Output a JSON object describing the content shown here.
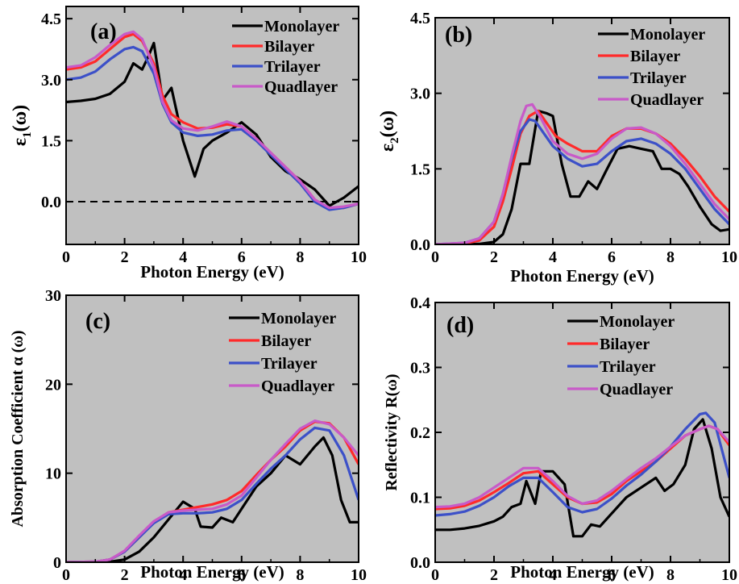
{
  "colors": {
    "Monolayer": "#000000",
    "Bilayer": "#ff2a2a",
    "Trilayer": "#3c50c8",
    "Quadlayer": "#c85ac8",
    "plot_background": "#c0c0c0"
  },
  "chart_data": [
    {
      "type": "line",
      "panel_label": "(a)",
      "xlabel": "Photon Energy (eV)",
      "ylabel_main": "ε",
      "ylabel_sub": "1",
      "ylabel_tail": "(ω)",
      "xlim": [
        0,
        10
      ],
      "ylim": [
        -1.05,
        4.8
      ],
      "xticks": [
        0,
        2,
        4,
        6,
        8,
        10
      ],
      "yticks": [
        0.0,
        1.5,
        3.0,
        4.5
      ],
      "ytick_labels": [
        "0.0",
        "1.5",
        "3.0",
        "4.5"
      ],
      "reference_line": {
        "y": 0,
        "style": "dashed"
      },
      "legend": "top-right",
      "series": [
        {
          "name": "Monolayer",
          "x": [
            0,
            0.5,
            1,
            1.5,
            2,
            2.3,
            2.6,
            2.8,
            3.0,
            3.3,
            3.6,
            4.0,
            4.4,
            4.7,
            5.0,
            5.5,
            6.0,
            6.5,
            7.0,
            7.5,
            8.0,
            8.5,
            9.0,
            9.5,
            10
          ],
          "values": [
            2.45,
            2.48,
            2.53,
            2.65,
            2.95,
            3.4,
            3.25,
            3.55,
            3.9,
            2.5,
            2.8,
            1.5,
            0.62,
            1.3,
            1.5,
            1.7,
            1.95,
            1.65,
            1.1,
            0.75,
            0.55,
            0.3,
            -0.1,
            0.1,
            0.38
          ]
        },
        {
          "name": "Bilayer",
          "x": [
            0,
            0.5,
            1,
            1.5,
            2,
            2.3,
            2.6,
            3.0,
            3.3,
            3.6,
            4.0,
            4.5,
            5.0,
            5.5,
            6.0,
            6.5,
            7.0,
            7.5,
            8.0,
            8.5,
            9.0,
            9.5,
            10
          ],
          "values": [
            3.25,
            3.3,
            3.45,
            3.75,
            4.05,
            4.12,
            3.95,
            3.4,
            2.6,
            2.15,
            1.95,
            1.8,
            1.82,
            1.9,
            1.85,
            1.55,
            1.2,
            0.85,
            0.5,
            0.05,
            -0.18,
            -0.15,
            -0.05
          ]
        },
        {
          "name": "Trilayer",
          "x": [
            0,
            0.5,
            1,
            1.5,
            2,
            2.3,
            2.6,
            3.0,
            3.3,
            3.6,
            4.0,
            4.5,
            5.0,
            5.5,
            6.0,
            6.5,
            7.0,
            7.5,
            8.0,
            8.5,
            9.0,
            9.5,
            10
          ],
          "values": [
            3.0,
            3.05,
            3.2,
            3.5,
            3.75,
            3.8,
            3.7,
            3.15,
            2.4,
            1.95,
            1.7,
            1.62,
            1.65,
            1.75,
            1.78,
            1.5,
            1.15,
            0.8,
            0.45,
            0.0,
            -0.2,
            -0.15,
            -0.05
          ]
        },
        {
          "name": "Quadlayer",
          "x": [
            0,
            0.5,
            1,
            1.5,
            2,
            2.3,
            2.6,
            3.0,
            3.3,
            3.6,
            4.0,
            4.5,
            5.0,
            5.5,
            6.0,
            6.5,
            7.0,
            7.5,
            8.0,
            8.5,
            9.0,
            9.5,
            10
          ],
          "values": [
            3.3,
            3.35,
            3.55,
            3.85,
            4.12,
            4.18,
            4.0,
            3.3,
            2.45,
            2.0,
            1.8,
            1.75,
            1.85,
            1.97,
            1.85,
            1.55,
            1.2,
            0.85,
            0.5,
            0.05,
            -0.15,
            -0.12,
            -0.05
          ]
        }
      ]
    },
    {
      "type": "line",
      "panel_label": "(b)",
      "xlabel": "Photon Energy (eV)",
      "ylabel_main": "ε",
      "ylabel_sub": "2",
      "ylabel_tail": "(ω)",
      "xlim": [
        0,
        10
      ],
      "ylim": [
        0,
        4.5
      ],
      "xticks": [
        0,
        2,
        4,
        6,
        8,
        10
      ],
      "yticks": [
        0.0,
        1.5,
        3.0,
        4.5
      ],
      "ytick_labels": [
        "0.0",
        "1.5",
        "3.0",
        "4.5"
      ],
      "legend": "top-right",
      "series": [
        {
          "name": "Monolayer",
          "x": [
            0,
            1,
            1.5,
            2,
            2.3,
            2.6,
            2.9,
            3.2,
            3.5,
            3.8,
            4.0,
            4.3,
            4.6,
            4.9,
            5.2,
            5.5,
            5.8,
            6.2,
            6.6,
            7.0,
            7.4,
            7.7,
            8.0,
            8.3,
            8.6,
            9.0,
            9.4,
            9.7,
            10
          ],
          "values": [
            0,
            0,
            0.01,
            0.05,
            0.2,
            0.7,
            1.6,
            1.6,
            2.65,
            2.6,
            2.55,
            1.6,
            0.95,
            0.95,
            1.25,
            1.1,
            1.45,
            1.9,
            1.95,
            1.9,
            1.85,
            1.5,
            1.5,
            1.4,
            1.15,
            0.75,
            0.4,
            0.27,
            0.3
          ]
        },
        {
          "name": "Bilayer",
          "x": [
            0,
            1,
            1.5,
            2,
            2.3,
            2.6,
            2.9,
            3.2,
            3.5,
            3.8,
            4.1,
            4.5,
            5.0,
            5.5,
            6.0,
            6.5,
            7.0,
            7.5,
            8.0,
            8.5,
            9.0,
            9.5,
            10
          ],
          "values": [
            0,
            0.02,
            0.08,
            0.35,
            0.85,
            1.5,
            2.2,
            2.55,
            2.65,
            2.4,
            2.15,
            2.0,
            1.85,
            1.85,
            2.15,
            2.3,
            2.3,
            2.2,
            2.0,
            1.7,
            1.35,
            0.95,
            0.65
          ]
        },
        {
          "name": "Trilayer",
          "x": [
            0,
            1,
            1.5,
            2,
            2.3,
            2.6,
            2.9,
            3.2,
            3.4,
            3.7,
            4.0,
            4.5,
            5.0,
            5.5,
            6.0,
            6.5,
            7.0,
            7.5,
            8.0,
            8.5,
            9.0,
            9.5,
            10
          ],
          "values": [
            0,
            0.03,
            0.12,
            0.45,
            1.0,
            1.7,
            2.25,
            2.48,
            2.45,
            2.2,
            1.95,
            1.7,
            1.55,
            1.6,
            1.85,
            2.05,
            2.1,
            2.0,
            1.8,
            1.5,
            1.1,
            0.7,
            0.4
          ]
        },
        {
          "name": "Quadlayer",
          "x": [
            0,
            1,
            1.5,
            2,
            2.3,
            2.6,
            2.9,
            3.1,
            3.3,
            3.6,
            4.0,
            4.5,
            5.0,
            5.5,
            6.0,
            6.5,
            7.0,
            7.5,
            8.0,
            8.5,
            9.0,
            9.5,
            10
          ],
          "values": [
            0,
            0.03,
            0.12,
            0.45,
            1.0,
            1.75,
            2.45,
            2.75,
            2.78,
            2.5,
            2.05,
            1.8,
            1.7,
            1.8,
            2.1,
            2.3,
            2.32,
            2.2,
            1.95,
            1.6,
            1.2,
            0.8,
            0.5
          ]
        }
      ]
    },
    {
      "type": "line",
      "panel_label": "(c)",
      "xlabel": "Photon Energy (eV)",
      "ylabel_main": "Absorption Coefficient α (ω)",
      "xlim": [
        0,
        10
      ],
      "ylim": [
        0,
        30
      ],
      "xticks": [
        0,
        2,
        4,
        6,
        8,
        10
      ],
      "yticks": [
        0,
        10,
        20,
        30
      ],
      "ytick_labels": [
        "0",
        "10",
        "20",
        "30"
      ],
      "legend": "top-right",
      "series": [
        {
          "name": "Monolayer",
          "x": [
            0,
            1,
            1.5,
            2,
            2.5,
            3.0,
            3.5,
            4.0,
            4.4,
            4.6,
            5.0,
            5.3,
            5.7,
            6.0,
            6.5,
            7.0,
            7.5,
            8.0,
            8.5,
            8.8,
            9.1,
            9.4,
            9.7,
            10
          ],
          "values": [
            0,
            0,
            0.05,
            0.3,
            1.2,
            2.8,
            4.8,
            6.8,
            6.0,
            4.0,
            3.9,
            5.0,
            4.5,
            6.0,
            8.5,
            10.0,
            12.0,
            11.0,
            13.0,
            14.0,
            12.0,
            7.0,
            4.5,
            4.5
          ]
        },
        {
          "name": "Bilayer",
          "x": [
            0,
            1,
            1.5,
            2,
            2.5,
            3.0,
            3.5,
            4.0,
            4.5,
            5.0,
            5.5,
            6.0,
            6.5,
            7.0,
            7.5,
            8.0,
            8.5,
            9.0,
            9.5,
            10
          ],
          "values": [
            0,
            0.05,
            0.3,
            1.2,
            2.8,
            4.5,
            5.6,
            5.9,
            6.2,
            6.5,
            7.0,
            8.0,
            9.8,
            11.5,
            13.0,
            14.8,
            15.8,
            15.6,
            14.0,
            11.0
          ]
        },
        {
          "name": "Trilayer",
          "x": [
            0,
            1,
            1.5,
            2,
            2.5,
            3.0,
            3.5,
            4.0,
            4.5,
            5.0,
            5.5,
            6.0,
            6.5,
            7.0,
            7.5,
            8.0,
            8.5,
            9.0,
            9.5,
            10
          ],
          "values": [
            0,
            0.05,
            0.3,
            1.2,
            2.8,
            4.4,
            5.4,
            5.5,
            5.5,
            5.6,
            6.0,
            7.0,
            8.8,
            10.5,
            12.0,
            13.8,
            15.1,
            14.8,
            12.0,
            7.0
          ]
        },
        {
          "name": "Quadlayer",
          "x": [
            0,
            1,
            1.5,
            2,
            2.5,
            3.0,
            3.5,
            4.0,
            4.5,
            5.0,
            5.5,
            6.0,
            6.5,
            7.0,
            7.5,
            8.0,
            8.5,
            9.0,
            9.5,
            10
          ],
          "values": [
            0,
            0.05,
            0.3,
            1.3,
            3.0,
            4.6,
            5.6,
            5.8,
            5.9,
            6.0,
            6.5,
            7.5,
            9.5,
            11.5,
            13.3,
            15.0,
            15.9,
            15.5,
            14.0,
            12.0
          ]
        }
      ]
    },
    {
      "type": "line",
      "panel_label": "(d)",
      "xlabel": "Photon Energy (eV)",
      "ylabel_main": "Reflectivity R(ω)",
      "xlim": [
        0,
        10
      ],
      "ylim": [
        0,
        0.4
      ],
      "xticks": [
        0,
        2,
        4,
        6,
        8,
        10
      ],
      "yticks": [
        0.0,
        0.1,
        0.2,
        0.3,
        0.4
      ],
      "ytick_labels": [
        "0.0",
        "0.1",
        "0.2",
        "0.3",
        "0.4"
      ],
      "legend": "top-right",
      "series": [
        {
          "name": "Monolayer",
          "x": [
            0,
            0.5,
            1,
            1.5,
            2,
            2.3,
            2.6,
            2.9,
            3.1,
            3.4,
            3.6,
            4.0,
            4.4,
            4.7,
            5.0,
            5.3,
            5.6,
            6.0,
            6.5,
            7.0,
            7.5,
            7.8,
            8.1,
            8.5,
            8.8,
            9.1,
            9.4,
            9.7,
            10
          ],
          "values": [
            0.05,
            0.05,
            0.052,
            0.056,
            0.063,
            0.07,
            0.085,
            0.09,
            0.125,
            0.09,
            0.14,
            0.14,
            0.12,
            0.04,
            0.04,
            0.058,
            0.055,
            0.075,
            0.1,
            0.115,
            0.13,
            0.11,
            0.12,
            0.15,
            0.205,
            0.22,
            0.175,
            0.1,
            0.07
          ]
        },
        {
          "name": "Bilayer",
          "x": [
            0,
            0.5,
            1,
            1.5,
            2,
            2.5,
            3.0,
            3.5,
            4.0,
            4.5,
            5.0,
            5.5,
            6.0,
            6.5,
            7.0,
            7.5,
            8.0,
            8.5,
            9.0,
            9.3,
            9.6,
            10
          ],
          "values": [
            0.082,
            0.083,
            0.087,
            0.095,
            0.108,
            0.122,
            0.137,
            0.14,
            0.12,
            0.1,
            0.09,
            0.092,
            0.105,
            0.125,
            0.14,
            0.155,
            0.175,
            0.195,
            0.205,
            0.21,
            0.205,
            0.18
          ]
        },
        {
          "name": "Trilayer",
          "x": [
            0,
            0.5,
            1,
            1.5,
            2,
            2.5,
            3.0,
            3.5,
            4.0,
            4.5,
            5.0,
            5.5,
            6.0,
            6.5,
            7.0,
            7.5,
            8.0,
            8.5,
            9.0,
            9.2,
            9.5,
            10
          ],
          "values": [
            0.072,
            0.074,
            0.078,
            0.087,
            0.1,
            0.117,
            0.13,
            0.13,
            0.108,
            0.085,
            0.077,
            0.082,
            0.098,
            0.118,
            0.135,
            0.155,
            0.178,
            0.205,
            0.228,
            0.23,
            0.215,
            0.13
          ]
        },
        {
          "name": "Quadlayer",
          "x": [
            0,
            0.5,
            1,
            1.5,
            2,
            2.5,
            3.0,
            3.5,
            4.0,
            4.5,
            5.0,
            5.5,
            6.0,
            6.5,
            7.0,
            7.5,
            8.0,
            8.5,
            9.0,
            9.3,
            9.6,
            10
          ],
          "values": [
            0.085,
            0.086,
            0.09,
            0.1,
            0.115,
            0.13,
            0.145,
            0.145,
            0.125,
            0.102,
            0.09,
            0.095,
            0.11,
            0.128,
            0.145,
            0.16,
            0.178,
            0.195,
            0.205,
            0.21,
            0.205,
            0.185
          ]
        }
      ]
    }
  ]
}
